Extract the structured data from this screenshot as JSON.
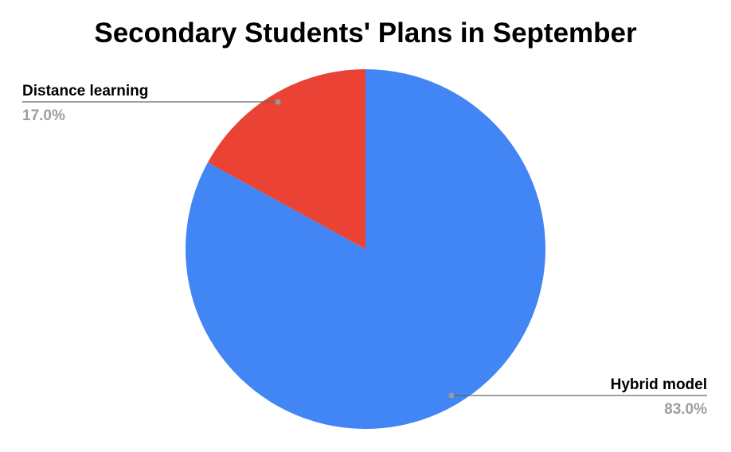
{
  "chart_data": {
    "type": "pie",
    "title": "Secondary Students' Plans in September",
    "slices": [
      {
        "label": "Hybrid model",
        "value": 83.0,
        "display": "83.0%",
        "color": "#4285F4"
      },
      {
        "label": "Distance learning",
        "value": 17.0,
        "display": "17.0%",
        "color": "#EA4335"
      }
    ],
    "legend": "none",
    "label_placement": "outside-with-leader-lines"
  }
}
